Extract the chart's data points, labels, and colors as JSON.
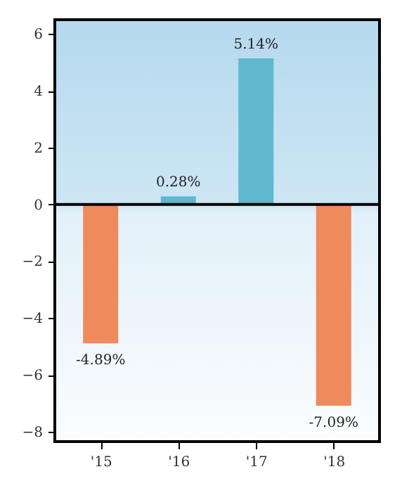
{
  "chart_data": {
    "type": "bar",
    "categories": [
      "'15",
      "'16",
      "'17",
      "'18"
    ],
    "values": [
      -4.89,
      0.28,
      5.14,
      -7.09
    ],
    "colors": [
      "#ee8a5c",
      "#5fb8cf",
      "#5fb8cf",
      "#ee8a5c"
    ],
    "value_labels": [
      "-4.89%",
      "0.28%",
      "5.14%",
      "-7.09%"
    ],
    "ylim": [
      -8.35,
      6.5
    ],
    "yticks": [
      {
        "value": -8,
        "label": "−8"
      },
      {
        "value": -6,
        "label": "−6"
      },
      {
        "value": -4,
        "label": "−4"
      },
      {
        "value": -2,
        "label": "−2"
      },
      0,
      2,
      4,
      6
    ],
    "ref_lines": [
      {
        "axis": "y",
        "value": 0,
        "color": "#000000"
      }
    ],
    "grid": false
  }
}
